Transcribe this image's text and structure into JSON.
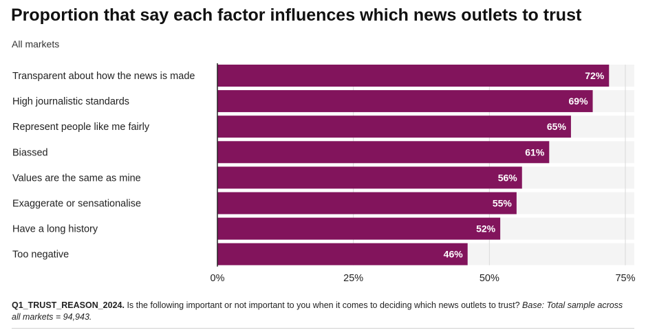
{
  "title": "Proportion that say each factor influences which news outlets to trust",
  "subtitle": "All markets",
  "colors": {
    "bar": "#82145c",
    "track": "#f4f4f4",
    "grid": "#d9d9d9",
    "label_text": "#ffffff"
  },
  "chart_data": {
    "type": "bar",
    "orientation": "horizontal",
    "categories": [
      "Transparent about how the news is made",
      "High journalistic standards",
      "Represent people like me fairly",
      "Biassed",
      "Values are the same as mine",
      "Exaggerate or sensationalise",
      "Have a long history",
      "Too negative"
    ],
    "values": [
      72,
      69,
      65,
      61,
      56,
      55,
      52,
      46
    ],
    "value_labels": [
      "72%",
      "69%",
      "65%",
      "61%",
      "56%",
      "55%",
      "52%",
      "46%"
    ],
    "xlim": [
      0,
      75
    ],
    "xticks": [
      0,
      25,
      50,
      75
    ],
    "xtick_labels": [
      "0%",
      "25%",
      "50%",
      "75%"
    ],
    "grid": true
  },
  "footnote": {
    "code": "Q1_TRUST_REASON_2024.",
    "question": "Is the following important or not important to you when it comes to deciding which news outlets to trust?",
    "base": "Base: Total sample across all markets = 94,943."
  }
}
